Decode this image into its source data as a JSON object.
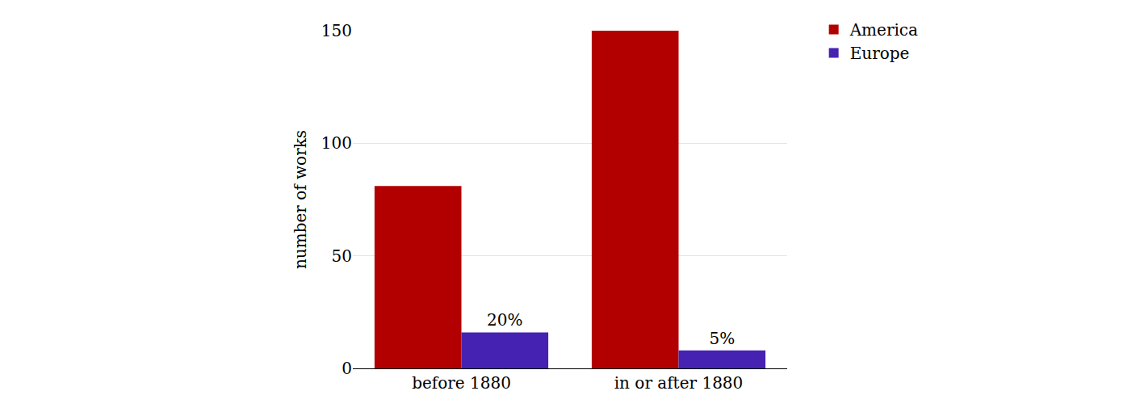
{
  "chart_data": {
    "type": "bar",
    "y_label": "number of works",
    "categories": [
      "before 1880",
      "in or after 1880"
    ],
    "series": [
      {
        "name": "America",
        "color": "#b20000",
        "values": [
          81,
          150
        ]
      },
      {
        "name": "Europe",
        "color": "#4622b2",
        "values": [
          16,
          8
        ],
        "annotations": [
          "20%",
          "5%"
        ]
      }
    ],
    "ylim": [
      0,
      150
    ],
    "yticks": [
      0,
      50,
      100,
      150
    ],
    "grid": true,
    "legend": "upper right"
  }
}
